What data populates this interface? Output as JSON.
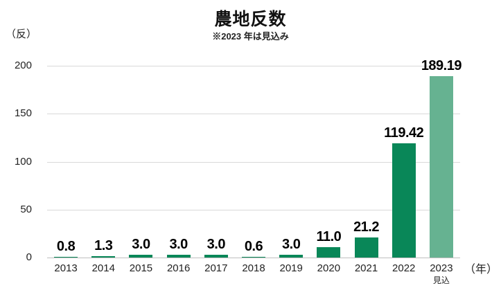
{
  "chart_data": {
    "type": "bar",
    "title": "農地反数",
    "subtitle": "※2023 年は見込み",
    "y_unit": "（反）",
    "x_unit": "（年）",
    "categories": [
      "2013",
      "2014",
      "2015",
      "2016",
      "2017",
      "2018",
      "2019",
      "2020",
      "2021",
      "2022",
      "2023"
    ],
    "values": [
      0.8,
      1.3,
      3.0,
      3.0,
      3.0,
      0.6,
      3.0,
      11.0,
      21.2,
      119.42,
      189.19
    ],
    "value_labels": [
      "0.8",
      "1.3",
      "3.0",
      "3.0",
      "3.0",
      "0.6",
      "3.0",
      "11.0",
      "21.2",
      "119.42",
      "189.19"
    ],
    "bar_color": "#098758",
    "forecast_bar_color": "#66b291",
    "forecast_category": "2023",
    "forecast_note": "見込",
    "yticks": [
      0,
      50,
      100,
      150,
      200
    ],
    "ylim": [
      0,
      200
    ],
    "grid": true,
    "legend": "none",
    "gridline_color": "#d9d9d9",
    "baseline_color": "#bfbfbf"
  }
}
